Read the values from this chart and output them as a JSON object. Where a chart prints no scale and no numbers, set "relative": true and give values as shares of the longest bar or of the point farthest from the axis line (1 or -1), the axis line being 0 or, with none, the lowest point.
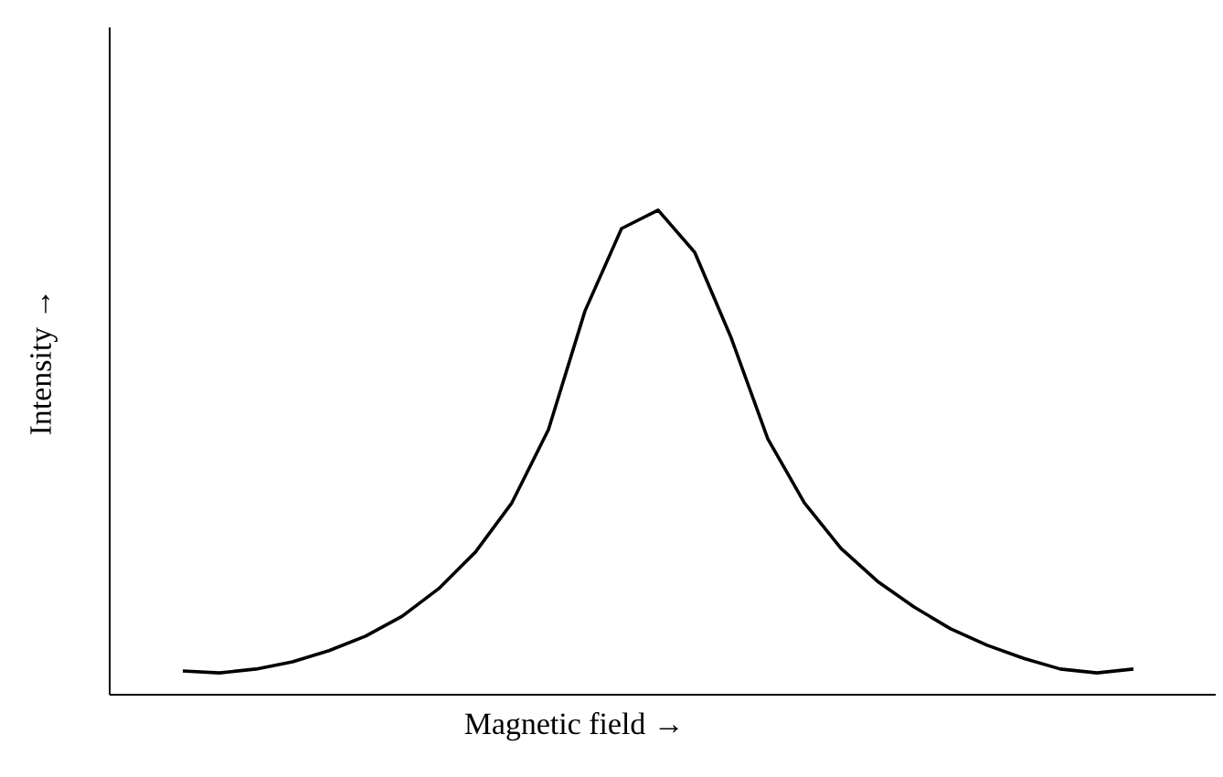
{
  "chart_data": {
    "type": "line",
    "relative": true,
    "xlabel": "Magnetic field →",
    "ylabel": "Intensity →",
    "color": "#000000",
    "marker": "none",
    "line_style": "solid",
    "tick_labels": false,
    "categories": [
      null,
      null,
      null,
      null,
      null,
      null,
      null,
      null,
      null,
      null,
      null,
      null,
      null,
      null,
      null,
      null,
      null,
      null,
      null,
      null,
      null,
      null,
      null,
      null,
      null,
      null,
      null
    ],
    "values": [
      0.049,
      0.045,
      0.053,
      0.068,
      0.091,
      0.121,
      0.162,
      0.219,
      0.294,
      0.396,
      0.547,
      0.792,
      0.962,
      1.0,
      0.913,
      0.736,
      0.528,
      0.396,
      0.302,
      0.234,
      0.181,
      0.136,
      0.102,
      0.075,
      0.053,
      0.045,
      0.053
    ]
  }
}
